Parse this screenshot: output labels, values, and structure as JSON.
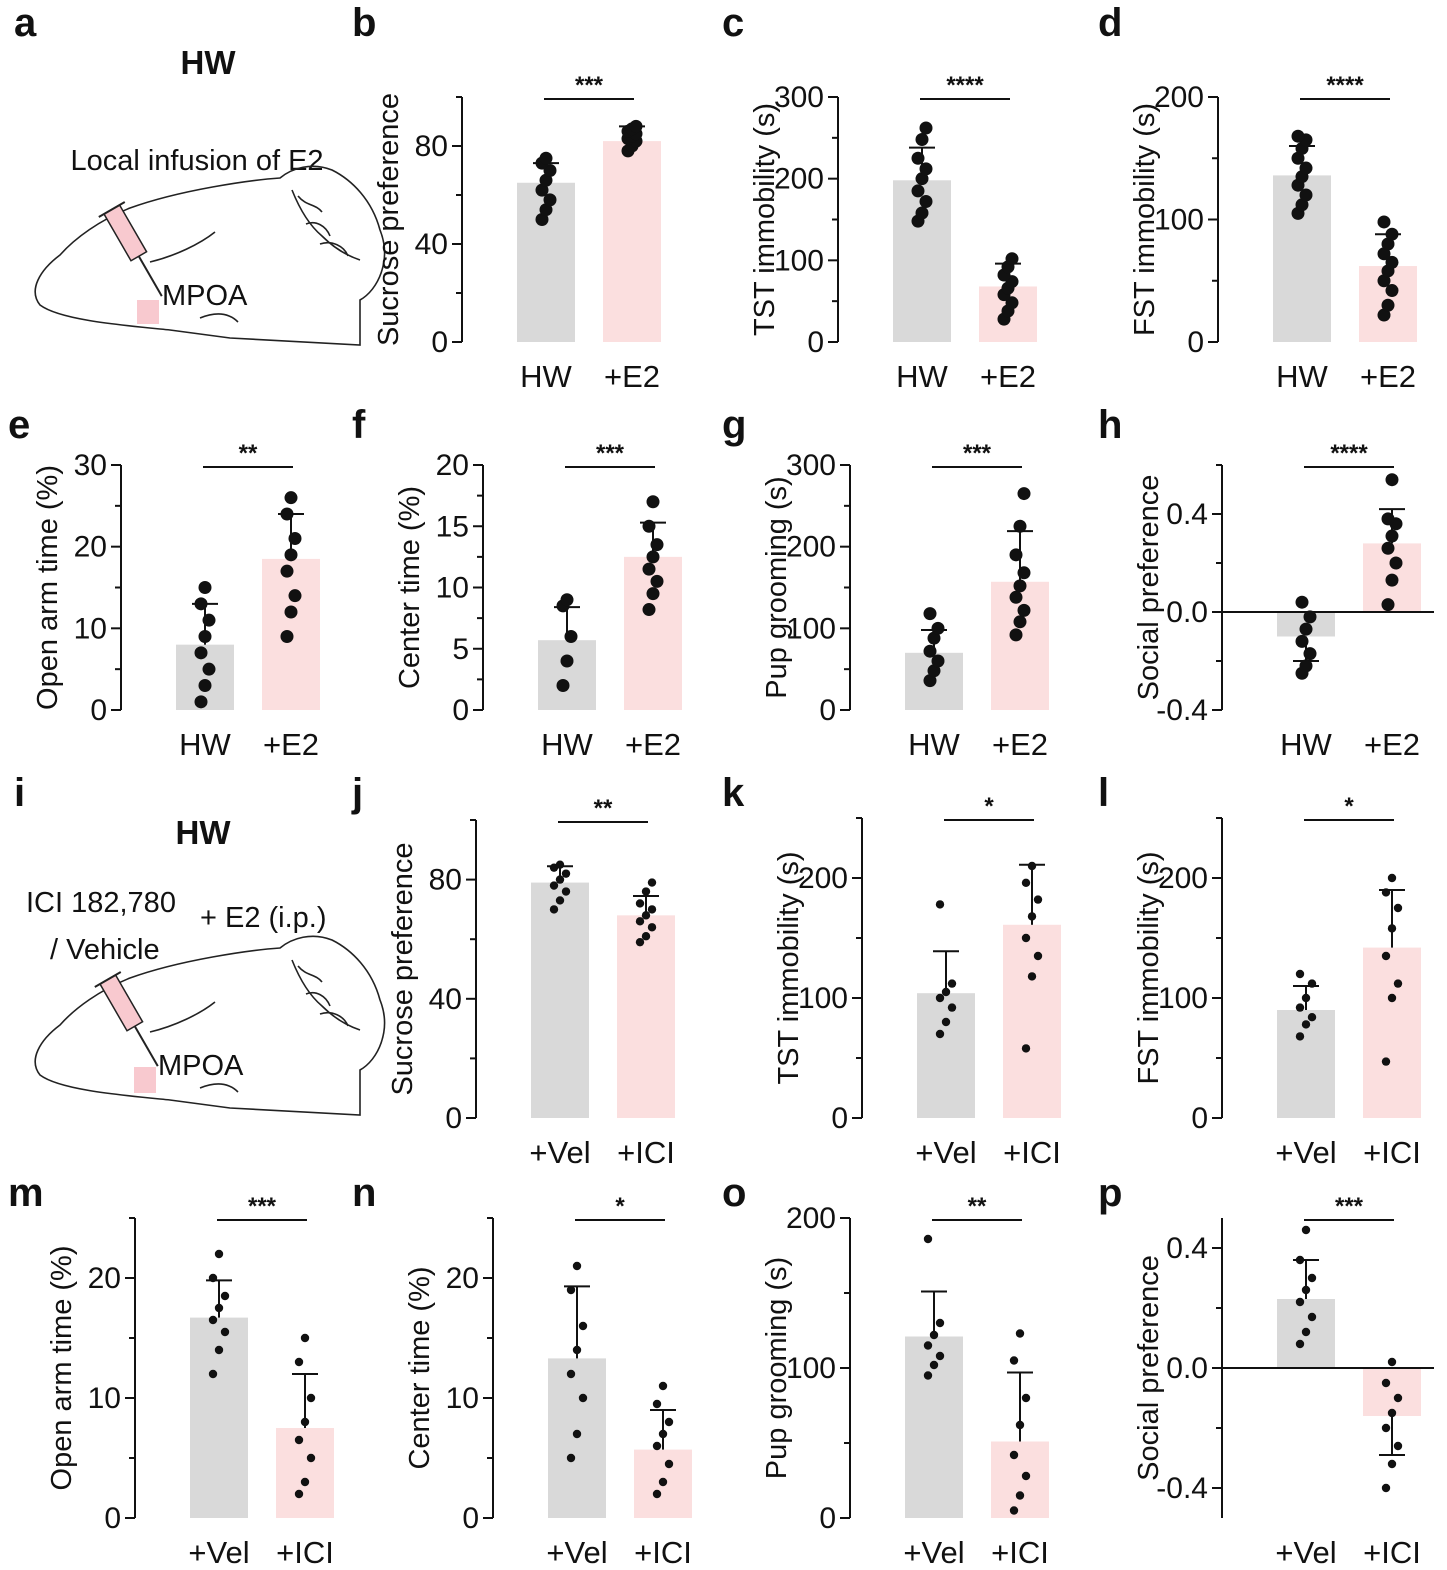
{
  "colors": {
    "control": "#d9d9d9",
    "treatment": "#fbdfdf",
    "ink": "#111111",
    "region": "#f8c9cf"
  },
  "schematics": [
    {
      "panel": "a",
      "title": "HW",
      "lines": [
        "Local infusion of E2"
      ],
      "region_label": "MPOA"
    },
    {
      "panel": "i",
      "title": "HW",
      "lines": [
        "ICI 182,780",
        "+ E2 (i.p.)",
        "/ Vehicle"
      ],
      "region_label": "MPOA"
    }
  ],
  "chart_data": [
    {
      "panel": "b",
      "type": "bar",
      "categories": [
        "HW",
        "+E2"
      ],
      "ylabel": "Sucrose preference",
      "ylim": [
        0,
        100
      ],
      "yticks": [
        "0",
        "40",
        "80"
      ],
      "values": [
        65,
        82
      ],
      "sd": [
        8,
        6
      ],
      "significance": "***",
      "points": [
        [
          50,
          54,
          58,
          62,
          66,
          70,
          73,
          75
        ],
        [
          78,
          80,
          82,
          83,
          84,
          85,
          86,
          87,
          88
        ]
      ]
    },
    {
      "panel": "c",
      "type": "bar",
      "categories": [
        "HW",
        "+E2"
      ],
      "ylabel": "TST immobility (s)",
      "ylim": [
        0,
        300
      ],
      "yticks": [
        "0",
        "100",
        "200",
        "300"
      ],
      "values": [
        198,
        68
      ],
      "sd": [
        40,
        28
      ],
      "significance": "****",
      "points": [
        [
          148,
          158,
          172,
          185,
          200,
          212,
          225,
          248,
          262
        ],
        [
          28,
          38,
          48,
          58,
          66,
          74,
          82,
          92,
          102
        ]
      ]
    },
    {
      "panel": "d",
      "type": "bar",
      "categories": [
        "HW",
        "+E2"
      ],
      "ylabel": "FST immobility (s)",
      "ylim": [
        0,
        200
      ],
      "yticks": [
        "0",
        "100",
        "200"
      ],
      "values": [
        136,
        62
      ],
      "sd": [
        24,
        26
      ],
      "significance": "****",
      "points": [
        [
          105,
          112,
          120,
          128,
          135,
          142,
          150,
          158,
          165,
          168
        ],
        [
          22,
          30,
          42,
          50,
          58,
          65,
          72,
          80,
          88,
          98
        ]
      ]
    },
    {
      "panel": "e",
      "type": "bar",
      "categories": [
        "HW",
        "+E2"
      ],
      "ylabel": "Open arm time (%)",
      "ylim": [
        0,
        30
      ],
      "yticks": [
        "0",
        "10",
        "20",
        "30"
      ],
      "values": [
        8,
        18.5
      ],
      "sd": [
        5,
        5.5
      ],
      "significance": "**",
      "points": [
        [
          1,
          3,
          5,
          7,
          9,
          11,
          13,
          15
        ],
        [
          9,
          12,
          14,
          17,
          19,
          21,
          24,
          26
        ]
      ]
    },
    {
      "panel": "f",
      "type": "bar",
      "categories": [
        "HW",
        "+E2"
      ],
      "ylabel": "Center time (%)",
      "ylim": [
        0,
        20
      ],
      "yticks": [
        "0",
        "5",
        "10",
        "15",
        "20"
      ],
      "values": [
        5.7,
        12.5
      ],
      "sd": [
        2.7,
        2.8
      ],
      "significance": "***",
      "points": [
        [
          2,
          4,
          6,
          8.5,
          9
        ],
        [
          8.2,
          9.5,
          10.5,
          11.5,
          12.5,
          13.5,
          15,
          17
        ]
      ]
    },
    {
      "panel": "g",
      "type": "bar",
      "categories": [
        "HW",
        "+E2"
      ],
      "ylabel": "Pup grooming (s)",
      "ylim": [
        0,
        300
      ],
      "yticks": [
        "0",
        "100",
        "200",
        "300"
      ],
      "values": [
        70,
        157
      ],
      "sd": [
        28,
        62
      ],
      "significance": "***",
      "points": [
        [
          36,
          48,
          60,
          72,
          88,
          100,
          118
        ],
        [
          92,
          108,
          122,
          138,
          152,
          168,
          190,
          225,
          265
        ]
      ]
    },
    {
      "panel": "h",
      "type": "bar",
      "categories": [
        "HW",
        "+E2"
      ],
      "ylabel": "Social preference",
      "ylim": [
        -0.4,
        0.6
      ],
      "yticks": [
        "-0.4",
        "0.0",
        "0.4"
      ],
      "values": [
        -0.1,
        0.28
      ],
      "sd": [
        0.1,
        0.14
      ],
      "significance": "****",
      "points": [
        [
          -0.25,
          -0.22,
          -0.17,
          -0.12,
          -0.07,
          -0.02,
          0.04
        ],
        [
          0.03,
          0.13,
          0.2,
          0.26,
          0.31,
          0.36,
          0.38,
          0.54
        ]
      ]
    },
    {
      "panel": "j",
      "type": "bar",
      "categories": [
        "+Vel",
        "+ICI"
      ],
      "ylabel": "Sucrose preference",
      "ylim": [
        0,
        100
      ],
      "yticks": [
        "0",
        "40",
        "80"
      ],
      "values": [
        79,
        68
      ],
      "sd": [
        5.5,
        6.5
      ],
      "significance": "**",
      "points": [
        [
          70,
          73,
          76,
          78,
          80,
          82,
          84,
          85
        ],
        [
          59,
          61,
          64,
          66,
          68,
          70,
          72,
          76,
          79
        ]
      ]
    },
    {
      "panel": "k",
      "type": "bar",
      "categories": [
        "+Vel",
        "+ICI"
      ],
      "ylabel": "TST immobility (s)",
      "ylim": [
        0,
        250
      ],
      "yticks": [
        "0",
        "100",
        "200"
      ],
      "values": [
        104,
        161
      ],
      "sd": [
        35,
        50
      ],
      "significance": "*",
      "points": [
        [
          70,
          80,
          92,
          100,
          105,
          112,
          178
        ],
        [
          58,
          118,
          135,
          150,
          168,
          182,
          196,
          210
        ]
      ]
    },
    {
      "panel": "l",
      "type": "bar",
      "categories": [
        "+Vel",
        "+ICI"
      ],
      "ylabel": "FST immobility (s)",
      "ylim": [
        0,
        250
      ],
      "yticks": [
        "0",
        "100",
        "200"
      ],
      "values": [
        90,
        142
      ],
      "sd": [
        20,
        48
      ],
      "significance": "*",
      "points": [
        [
          68,
          78,
          84,
          92,
          100,
          112,
          120
        ],
        [
          47,
          100,
          112,
          135,
          158,
          175,
          188,
          200
        ]
      ]
    },
    {
      "panel": "m",
      "type": "bar",
      "categories": [
        "+Vel",
        "+ICI"
      ],
      "ylabel": "Open arm time (%)",
      "ylim": [
        0,
        25
      ],
      "yticks": [
        "0",
        "10",
        "20"
      ],
      "values": [
        16.7,
        7.5
      ],
      "sd": [
        3.1,
        4.5
      ],
      "significance": "***",
      "points": [
        [
          12,
          14,
          15.5,
          16.5,
          17.5,
          18.5,
          20,
          22
        ],
        [
          2,
          3,
          5,
          6.5,
          8,
          10,
          13,
          15
        ]
      ]
    },
    {
      "panel": "n",
      "type": "bar",
      "categories": [
        "+Vel",
        "+ICI"
      ],
      "ylabel": "Center time (%)",
      "ylim": [
        0,
        25
      ],
      "yticks": [
        "0",
        "10",
        "20"
      ],
      "values": [
        13.3,
        5.7
      ],
      "sd": [
        6,
        3.3
      ],
      "significance": "*",
      "points": [
        [
          5,
          7,
          10,
          12,
          14,
          16,
          19,
          21
        ],
        [
          2,
          3,
          4.5,
          6,
          7,
          8,
          9.5,
          11
        ]
      ]
    },
    {
      "panel": "o",
      "type": "bar",
      "categories": [
        "+Vel",
        "+ICI"
      ],
      "ylabel": "Pup grooming (s)",
      "ylim": [
        0,
        200
      ],
      "yticks": [
        "0",
        "100",
        "200"
      ],
      "values": [
        121,
        51
      ],
      "sd": [
        30,
        46
      ],
      "significance": "**",
      "points": [
        [
          95,
          102,
          108,
          115,
          122,
          130,
          186
        ],
        [
          5,
          15,
          28,
          42,
          62,
          80,
          105,
          123
        ]
      ]
    },
    {
      "panel": "p",
      "type": "bar",
      "categories": [
        "+Vel",
        "+ICI"
      ],
      "ylabel": "Social preference",
      "ylim": [
        -0.5,
        0.5
      ],
      "yticks": [
        "-0.4",
        "0.0",
        "0.4"
      ],
      "values": [
        0.23,
        -0.16
      ],
      "sd": [
        0.13,
        0.13
      ],
      "significance": "***",
      "points": [
        [
          0.08,
          0.12,
          0.17,
          0.22,
          0.26,
          0.3,
          0.36,
          0.46
        ],
        [
          -0.4,
          -0.32,
          -0.26,
          -0.2,
          -0.15,
          -0.1,
          -0.05,
          0.02
        ]
      ]
    }
  ]
}
